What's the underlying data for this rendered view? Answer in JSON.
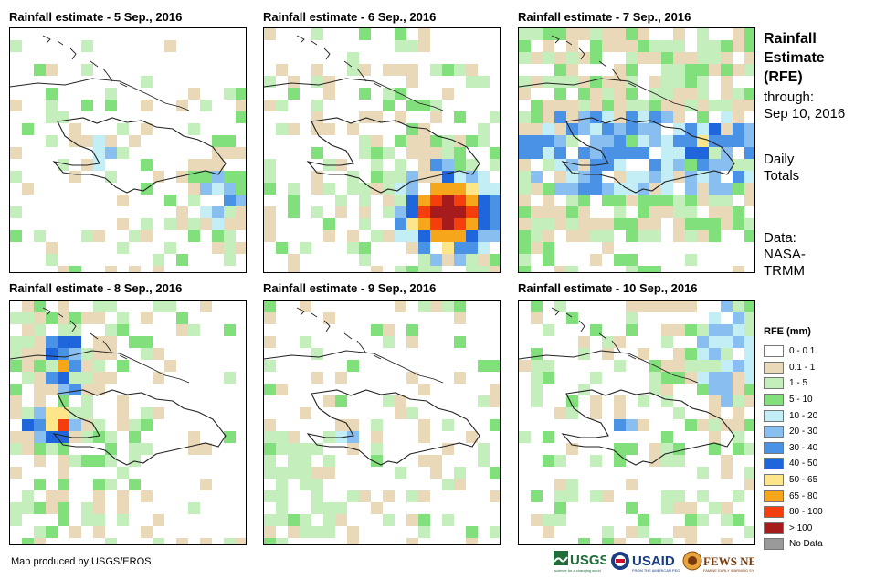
{
  "panels": [
    {
      "title": "Rainfall estimate - 5 Sep., 2016"
    },
    {
      "title": "Rainfall estimate - 6 Sep., 2016"
    },
    {
      "title": "Rainfall estimate - 7 Sep., 2016"
    },
    {
      "title": "Rainfall estimate - 8 Sep., 2016"
    },
    {
      "title": "Rainfall estimate - 9 Sep., 2016"
    },
    {
      "title": "Rainfall estimate - 10 Sep., 2016"
    }
  ],
  "side": {
    "title_lines": [
      "Rainfall",
      "Estimate",
      "(RFE)"
    ],
    "through": "through:",
    "date": "Sep 10, 2016",
    "totals_lines": [
      "Daily",
      "Totals"
    ],
    "data_lines": [
      "Data:",
      "NASA-",
      "TRMM"
    ]
  },
  "legend": {
    "title": "RFE (mm)",
    "items": [
      {
        "label": "0 - 0.1",
        "color": "#ffffff"
      },
      {
        "label": "0.1 - 1",
        "color": "#ead9b8"
      },
      {
        "label": "1 - 5",
        "color": "#c4eebc"
      },
      {
        "label": "5 - 10",
        "color": "#82e07c"
      },
      {
        "label": "10 - 20",
        "color": "#c4eef6"
      },
      {
        "label": "20 - 30",
        "color": "#88bff0"
      },
      {
        "label": "30 - 40",
        "color": "#4a92e6"
      },
      {
        "label": "40 - 50",
        "color": "#1f66dd"
      },
      {
        "label": "50 - 65",
        "color": "#fde68a"
      },
      {
        "label": "65 - 80",
        "color": "#f6a61a"
      },
      {
        "label": "80 - 100",
        "color": "#f43f0c"
      },
      {
        "label": "> 100",
        "color": "#a61c1c"
      },
      {
        "label": "No Data",
        "color": "#9a9a9a"
      }
    ]
  },
  "credit": "Map produced by USGS/EROS",
  "logos": {
    "usgs": "USGS",
    "usaid": "USAID",
    "fewsnet": "FEWS NET"
  }
}
